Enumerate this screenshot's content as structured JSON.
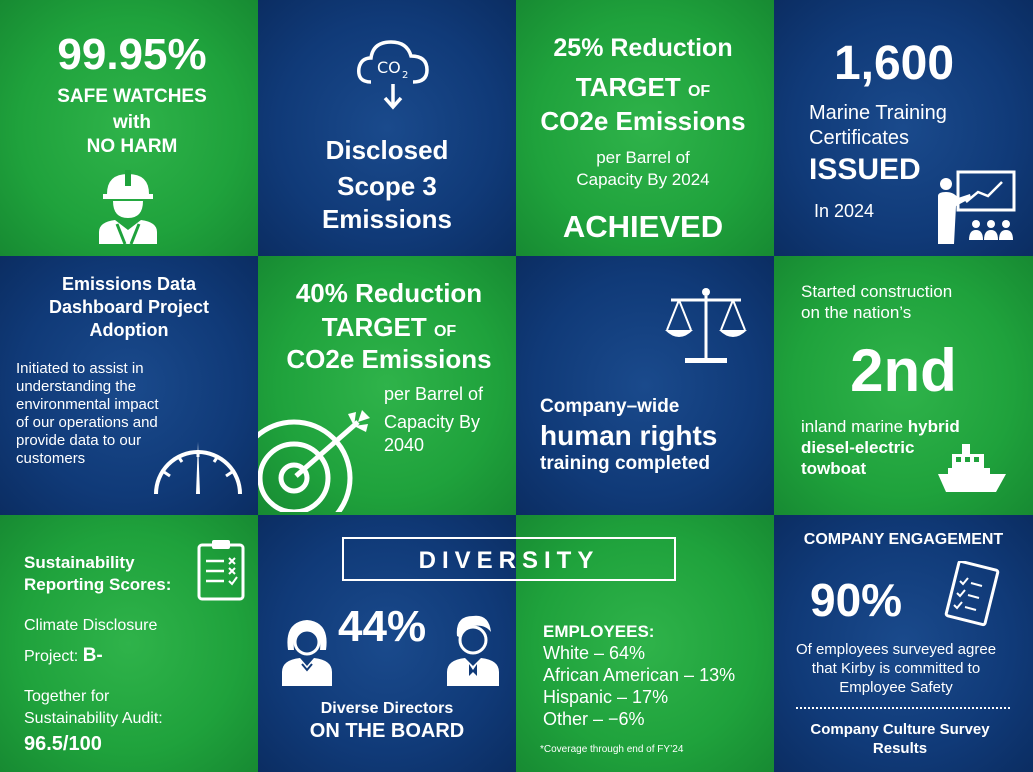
{
  "tile1": {
    "value": "99.95%",
    "line1": "SAFE WATCHES",
    "line2": "with",
    "line3": "NO HARM",
    "icon": "worker-hardhat-icon"
  },
  "tile2": {
    "line1": "Disclosed",
    "line2": "Scope 3",
    "line3": "Emissions",
    "icon": "co2-cloud-icon",
    "co2": "CO",
    "sub2": "2"
  },
  "tile3": {
    "line1": "25% Reduction",
    "line2a": "TARGET",
    "line2b": "OF",
    "line3": "CO2e Emissions",
    "line4": "per Barrel of",
    "line5": "Capacity By 2024",
    "line6": "ACHIEVED"
  },
  "tile4": {
    "value": "1,600",
    "line1": "Marine Training",
    "line2": "Certificates",
    "line3": "ISSUED",
    "line4": "In 2024",
    "icon": "presentation-icon"
  },
  "tile5": {
    "line1": "Emissions Data",
    "line2": "Dashboard Project",
    "line3": "Adoption",
    "body": [
      "Initiated to assist in",
      "understanding the",
      "environmental impact",
      "of our operations and",
      "provide data to our",
      "customers"
    ],
    "icon": "gauge-icon"
  },
  "tile6": {
    "line1": "40% Reduction",
    "line2a": "TARGET",
    "line2b": "OF",
    "line3": "CO2e Emissions",
    "line4": "per Barrel of",
    "line5": "Capacity By",
    "line6": "2040",
    "icon": "target-arrow-icon"
  },
  "tile7": {
    "line1": "Company–wide",
    "line2": "human rights",
    "line3": "training completed",
    "icon": "scales-icon"
  },
  "tile8": {
    "line1": "Started construction",
    "line2": "on the nation’s",
    "value": "2nd",
    "line3a": "inland marine ",
    "line3b": "hybrid",
    "line4": "diesel-electric",
    "line5": "towboat",
    "icon": "boat-icon"
  },
  "tile9": {
    "line1": "Sustainability",
    "line2": "Reporting Scores:",
    "line3": "Climate Disclosure",
    "line4a": "Project: ",
    "line4b": "B-",
    "line5": "Together for",
    "line6": "Sustainability Audit:",
    "line7": "96.5/100",
    "icon": "checklist-icon"
  },
  "diversity": {
    "title": "DIVERSITY",
    "value": "44%",
    "line1": "Diverse Directors",
    "line2": "ON THE BOARD",
    "employees_title": "EMPLOYEES:",
    "employees": [
      "White – 64%",
      "African American – 13%",
      "Hispanic – 17%",
      "Other – −6%"
    ],
    "footnote": "*Coverage through end of FY’24"
  },
  "engagement": {
    "title": "COMPANY ENGAGEMENT",
    "value": "90%",
    "line1": "Of employees surveyed agree",
    "line2": "that Kirby is committed to",
    "line3": "Employee Safety",
    "line4": "Company Culture Survey",
    "line5": "Results",
    "icon": "survey-icon"
  },
  "colors": {
    "green": "#1fa23c",
    "blue": "#103a78"
  }
}
